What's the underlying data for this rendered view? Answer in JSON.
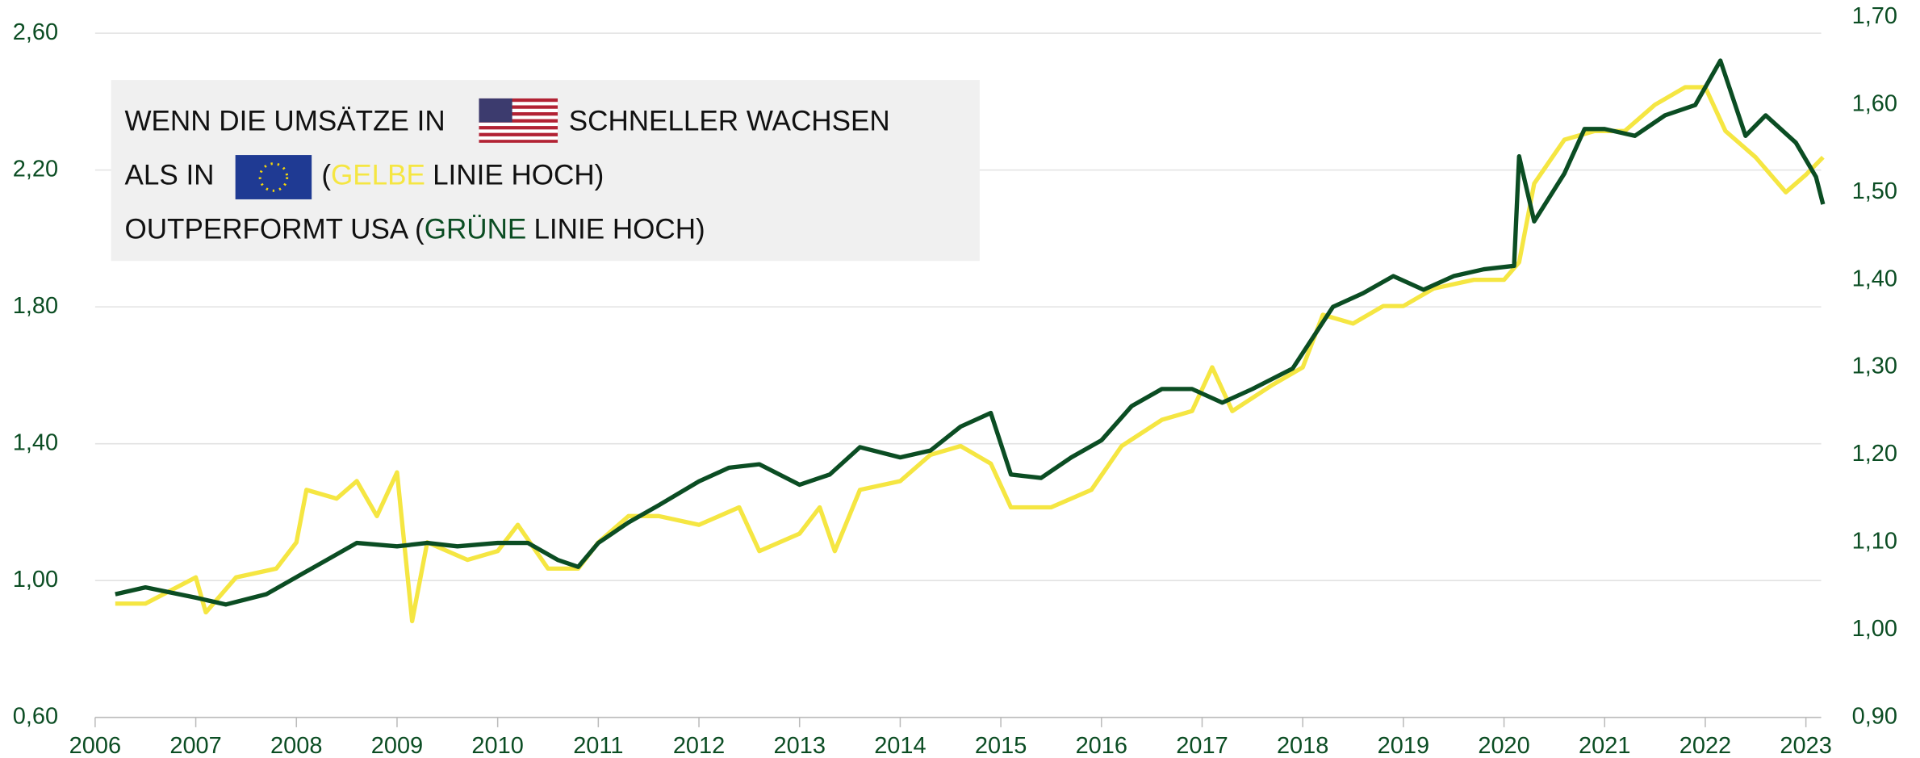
{
  "chart_data": {
    "type": "line",
    "xlim": [
      2006,
      2023.2
    ],
    "xticks": [
      2006,
      2007,
      2008,
      2009,
      2010,
      2011,
      2012,
      2013,
      2014,
      2015,
      2016,
      2017,
      2018,
      2019,
      2020,
      2021,
      2022,
      2023
    ],
    "ylim": [
      0.6,
      2.6
    ],
    "yticks": [
      {
        "value": 0.6,
        "label": "0,60"
      },
      {
        "value": 1.0,
        "label": "1,00"
      },
      {
        "value": 1.4,
        "label": "1,40"
      },
      {
        "value": 1.8,
        "label": "1,80"
      },
      {
        "value": 2.2,
        "label": "2,20"
      },
      {
        "value": 2.6,
        "label": "2,60"
      }
    ],
    "y2lim": [
      0.9,
      1.7
    ],
    "y2ticks": [
      {
        "value": 0.9,
        "label": "0,90"
      },
      {
        "value": 1.0,
        "label": "1,00"
      },
      {
        "value": 1.1,
        "label": "1,10"
      },
      {
        "value": 1.2,
        "label": "1,20"
      },
      {
        "value": 1.3,
        "label": "1,30"
      },
      {
        "value": 1.4,
        "label": "1,40"
      },
      {
        "value": 1.5,
        "label": "1,50"
      },
      {
        "value": 1.6,
        "label": "1,60"
      },
      {
        "value": 1.7,
        "label": "1,70"
      }
    ],
    "grid": true,
    "annotation": {
      "line1": [
        "WENN DIE UMSÄTZE IN",
        "SCHNELLER WACHSEN"
      ],
      "line2": [
        "ALS IN",
        "(",
        "GELBE",
        "LINIE HOCH)"
      ],
      "line3": [
        "OUTPERFORMT USA (",
        "GRÜNE",
        "LINIE HOCH)"
      ]
    },
    "series": [
      {
        "color": "#0b4d23",
        "axis": "y",
        "x": [
          2006.2,
          2006.5,
          2007.0,
          2007.3,
          2007.7,
          2008.0,
          2008.3,
          2008.6,
          2009.0,
          2009.3,
          2009.6,
          2010.0,
          2010.3,
          2010.6,
          2010.8,
          2011.0,
          2011.3,
          2011.6,
          2012.0,
          2012.3,
          2012.6,
          2013.0,
          2013.3,
          2013.6,
          2014.0,
          2014.3,
          2014.6,
          2014.9,
          2015.1,
          2015.4,
          2015.7,
          2016.0,
          2016.3,
          2016.6,
          2016.9,
          2017.2,
          2017.5,
          2017.9,
          2018.1,
          2018.3,
          2018.6,
          2018.9,
          2019.2,
          2019.5,
          2019.8,
          2020.1,
          2020.15,
          2020.3,
          2020.6,
          2020.8,
          2021.0,
          2021.3,
          2021.6,
          2021.9,
          2022.15,
          2022.4,
          2022.6,
          2022.9,
          2023.1,
          2023.17
        ],
        "values": [
          0.96,
          0.98,
          0.95,
          0.93,
          0.96,
          1.01,
          1.06,
          1.11,
          1.1,
          1.11,
          1.1,
          1.11,
          1.11,
          1.06,
          1.04,
          1.11,
          1.17,
          1.22,
          1.29,
          1.33,
          1.34,
          1.28,
          1.31,
          1.39,
          1.36,
          1.38,
          1.45,
          1.49,
          1.31,
          1.3,
          1.36,
          1.41,
          1.51,
          1.56,
          1.56,
          1.52,
          1.56,
          1.62,
          1.71,
          1.8,
          1.84,
          1.89,
          1.85,
          1.89,
          1.91,
          1.92,
          2.24,
          2.05,
          2.19,
          2.32,
          2.32,
          2.3,
          2.36,
          2.39,
          2.52,
          2.3,
          2.36,
          2.28,
          2.18,
          2.1
        ]
      },
      {
        "color": "#f5e642",
        "axis": "y2",
        "x": [
          2006.2,
          2006.5,
          2007.0,
          2007.1,
          2007.4,
          2007.8,
          2008.0,
          2008.1,
          2008.4,
          2008.6,
          2008.8,
          2009.0,
          2009.15,
          2009.3,
          2009.7,
          2010.0,
          2010.2,
          2010.5,
          2010.8,
          2011.0,
          2011.3,
          2011.6,
          2012.0,
          2012.4,
          2012.6,
          2013.0,
          2013.2,
          2013.35,
          2013.6,
          2014.0,
          2014.3,
          2014.6,
          2014.9,
          2015.1,
          2015.5,
          2015.9,
          2016.2,
          2016.6,
          2016.9,
          2017.1,
          2017.3,
          2017.7,
          2018.0,
          2018.2,
          2018.5,
          2018.8,
          2019.0,
          2019.3,
          2019.7,
          2020.0,
          2020.15,
          2020.3,
          2020.6,
          2020.9,
          2021.2,
          2021.5,
          2021.8,
          2022.0,
          2022.2,
          2022.5,
          2022.8,
          2023.0,
          2023.17
        ],
        "values": [
          1.03,
          1.03,
          1.06,
          1.02,
          1.06,
          1.07,
          1.1,
          1.16,
          1.15,
          1.17,
          1.13,
          1.18,
          1.01,
          1.1,
          1.08,
          1.09,
          1.12,
          1.07,
          1.07,
          1.1,
          1.13,
          1.13,
          1.12,
          1.14,
          1.09,
          1.11,
          1.14,
          1.09,
          1.16,
          1.17,
          1.2,
          1.21,
          1.19,
          1.14,
          1.14,
          1.16,
          1.21,
          1.24,
          1.25,
          1.3,
          1.25,
          1.28,
          1.3,
          1.36,
          1.35,
          1.37,
          1.37,
          1.39,
          1.4,
          1.4,
          1.42,
          1.51,
          1.56,
          1.57,
          1.57,
          1.6,
          1.62,
          1.62,
          1.57,
          1.54,
          1.5,
          1.52,
          1.54
        ]
      }
    ]
  }
}
